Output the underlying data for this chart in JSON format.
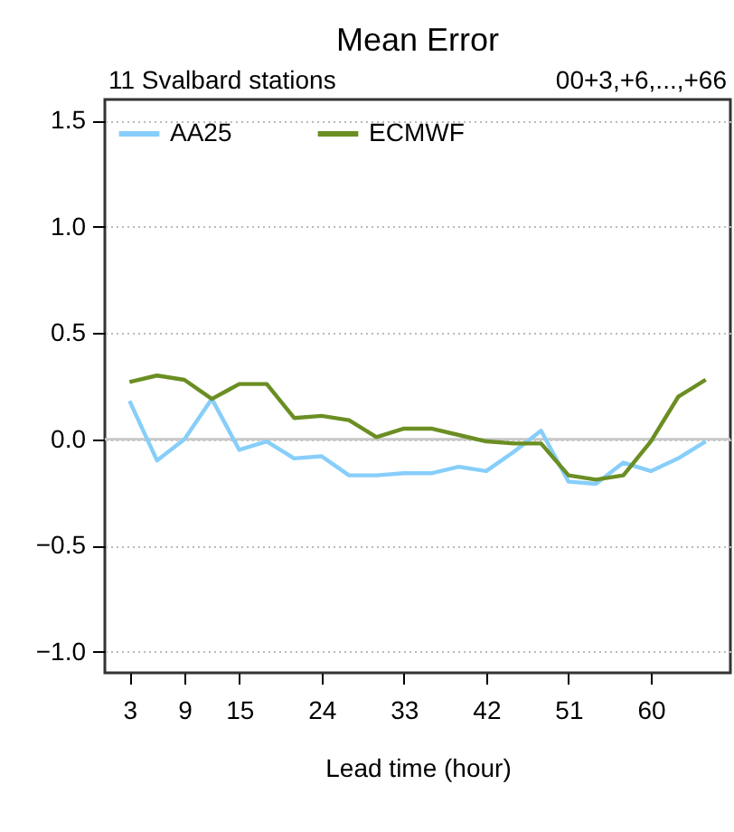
{
  "chart_data": {
    "type": "line",
    "title": "Mean Error",
    "xlabel": "Lead time (hour)",
    "annotations": [
      "11 Svalbard stations",
      "00+3,+6,...,+66"
    ],
    "x": [
      3,
      6,
      9,
      12,
      15,
      18,
      21,
      24,
      27,
      30,
      33,
      36,
      39,
      42,
      45,
      48,
      51,
      54,
      57,
      60,
      63,
      66
    ],
    "series": [
      {
        "name": "AA25",
        "color": "#87cefa",
        "values": [
          0.18,
          -0.1,
          0.0,
          0.19,
          -0.05,
          -0.01,
          -0.09,
          -0.08,
          -0.17,
          -0.17,
          -0.16,
          -0.16,
          -0.13,
          -0.15,
          -0.06,
          0.04,
          -0.2,
          -0.21,
          -0.11,
          -0.15,
          -0.09,
          -0.01
        ]
      },
      {
        "name": "ECMWF",
        "color": "#6b8e23",
        "values": [
          0.27,
          0.3,
          0.28,
          0.19,
          0.26,
          0.26,
          0.1,
          0.11,
          0.09,
          0.01,
          0.05,
          0.05,
          0.02,
          -0.01,
          -0.02,
          -0.02,
          -0.17,
          -0.19,
          -0.17,
          -0.01,
          0.2,
          0.28
        ]
      }
    ],
    "xlim": [
      0.3,
      68.7
    ],
    "xticks": [
      3,
      9,
      15,
      24,
      33,
      42,
      51,
      60
    ],
    "ylim": [
      -1.1,
      1.6
    ],
    "yticks": [
      {
        "value": -1,
        "label": "−1.0"
      },
      {
        "value": -0.5,
        "label": "−0.5"
      },
      {
        "value": 0,
        "label": "0.0"
      },
      {
        "value": 0.5,
        "label": "0.5"
      },
      {
        "value": 1,
        "label": "1.0"
      },
      {
        "value": 1.5,
        "label": "1.5"
      }
    ],
    "grid": "y",
    "legend": "top left",
    "ref_lines": [
      {
        "axis": "y",
        "value": 0,
        "color": "#c8c8c8"
      }
    ]
  }
}
